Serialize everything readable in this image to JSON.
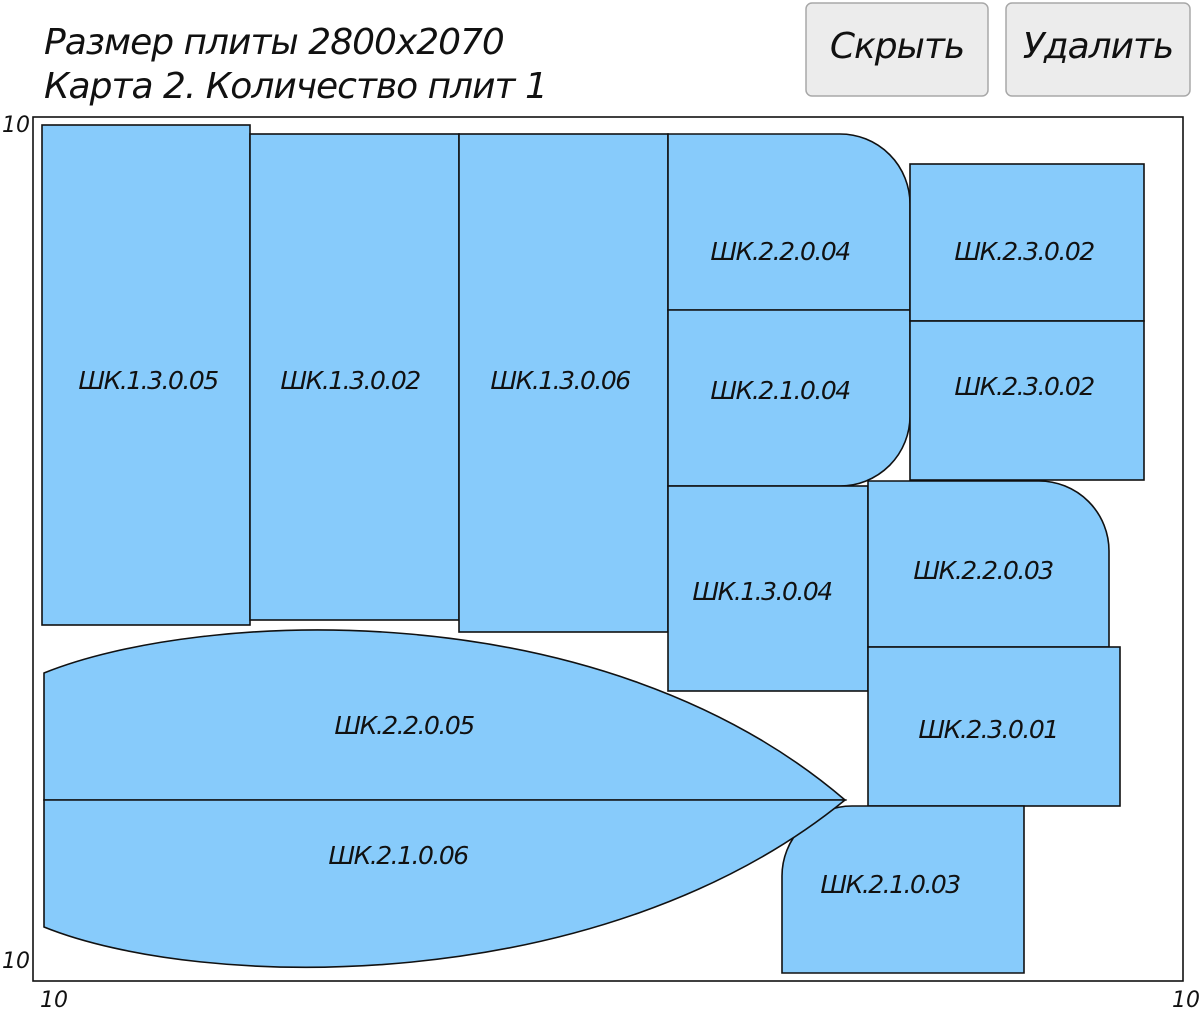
{
  "header": {
    "line1": "Размер плиты 2800x2070",
    "line2": "Карта 2. Количество плит 1"
  },
  "buttons": [
    "Скрыть",
    "Удалить"
  ],
  "margins": {
    "top_left": "10",
    "bottom_left": "10",
    "bottom_x_left": "10",
    "bottom_x_right": "10"
  },
  "parts": [
    "ШК.1.3.0.05",
    "ШК.1.3.0.02",
    "ШК.1.3.0.06",
    "ШК.2.2.0.04",
    "ШК.2.1.0.04",
    "ШК.2.3.0.02",
    "ШК.2.3.0.02",
    "ШК.1.3.0.04",
    "ШК.2.2.0.03",
    "ШК.2.3.0.01",
    "ШК.2.1.0.03",
    "ШК.2.2.0.05",
    "ШК.2.1.0.06"
  ]
}
